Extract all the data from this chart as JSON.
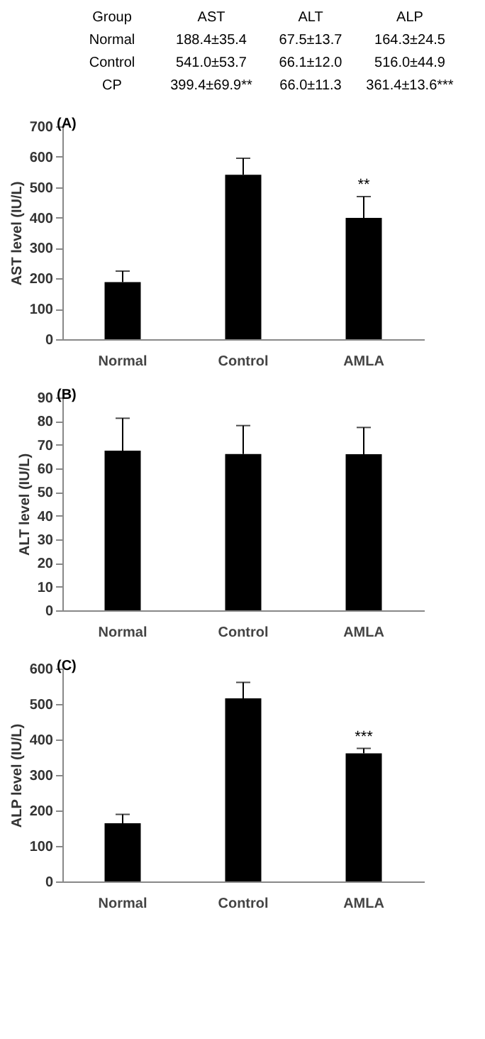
{
  "chart_data": [
    {
      "type": "other",
      "categories": [
        "Group",
        "AST",
        "ALT",
        "ALP"
      ],
      "annotations": [
        "Normal",
        "188.4±35.4",
        "67.5±13.7",
        "164.3±24.5",
        "Control",
        "541.0±53.7",
        "66.1±12.0",
        "516.0±44.9",
        "CP",
        "399.4±69.9**",
        "66.0±11.3",
        "361.4±13.6***"
      ]
    },
    {
      "type": "bar",
      "title": "(A)",
      "ylabel": "AST level (IU/L)",
      "categories": [
        "Normal",
        "Control",
        "AMLA"
      ],
      "color": "#000000",
      "values": [
        188,
        541,
        399
      ],
      "errors": [
        [
          188,
          224
        ],
        [
          541,
          595
        ],
        [
          399,
          469
        ]
      ],
      "ylim": [
        0,
        700
      ],
      "yticks": [
        0,
        100,
        200,
        300,
        400,
        500,
        600,
        700
      ],
      "grid": false,
      "annotations": [
        {
          "text": "**",
          "x": "AMLA",
          "y": 469
        }
      ]
    },
    {
      "type": "bar",
      "title": "(B)",
      "ylabel": "ALT level (IU/L)",
      "categories": [
        "Normal",
        "Control",
        "AMLA"
      ],
      "color": "#000000",
      "values": [
        67.5,
        66.1,
        66.0
      ],
      "errors": [
        [
          67.5,
          81.2
        ],
        [
          66.1,
          78.1
        ],
        [
          66.0,
          77.3
        ]
      ],
      "ylim": [
        0,
        90
      ],
      "yticks": [
        0,
        10,
        20,
        30,
        40,
        50,
        60,
        70,
        80,
        90
      ],
      "grid": false
    },
    {
      "type": "bar",
      "title": "(C)",
      "ylabel": "ALP level (IU/L)",
      "categories": [
        "Normal",
        "Control",
        "AMLA"
      ],
      "color": "#000000",
      "values": [
        164,
        516,
        361
      ],
      "errors": [
        [
          164,
          189
        ],
        [
          516,
          561
        ],
        [
          361,
          375
        ]
      ],
      "ylim": [
        0,
        600
      ],
      "yticks": [
        0,
        100,
        200,
        300,
        400,
        500,
        600
      ],
      "grid": false,
      "annotations": [
        {
          "text": "***",
          "x": "AMLA",
          "y": 375
        }
      ]
    }
  ]
}
